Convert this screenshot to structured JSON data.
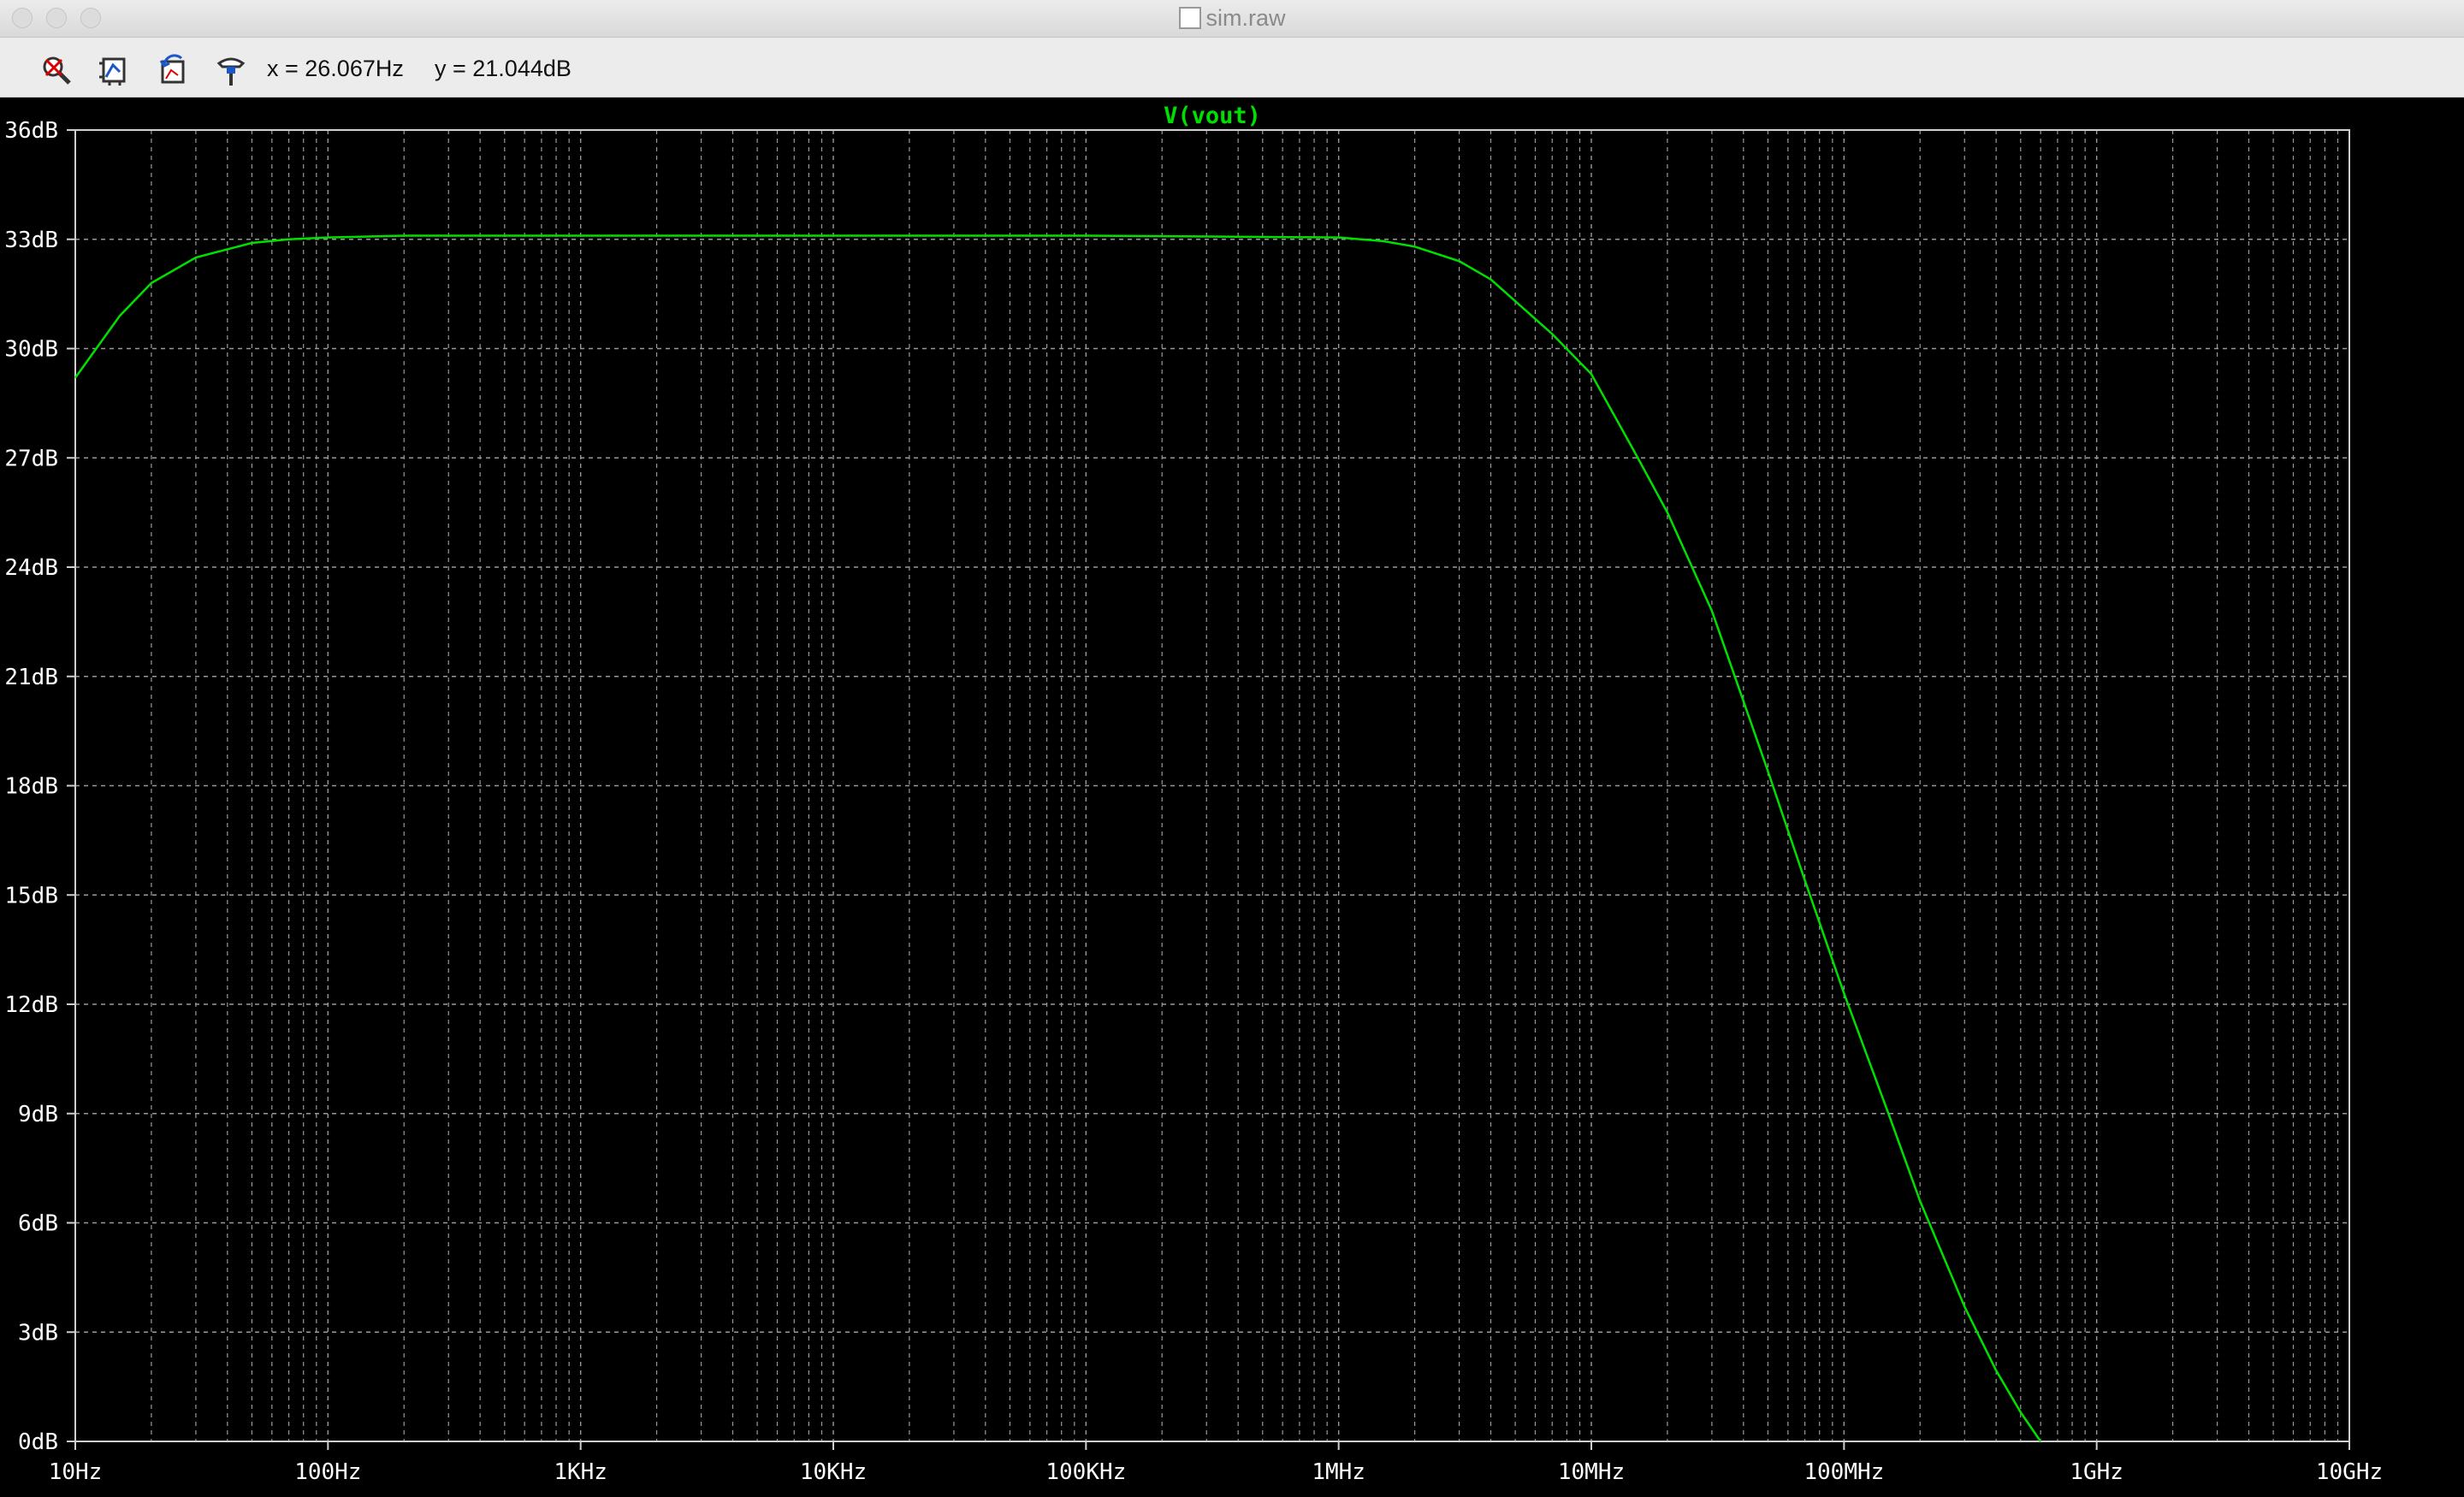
{
  "window": {
    "title": "sim.raw"
  },
  "toolbar": {
    "tools": [
      {
        "name": "zoom-cancel-icon"
      },
      {
        "name": "autorange-icon"
      },
      {
        "name": "undo-zoom-icon"
      },
      {
        "name": "probe-icon"
      }
    ],
    "cursor_x": "x = 26.067Hz",
    "cursor_y": "y = 21.044dB"
  },
  "colors": {
    "background": "#000000",
    "trace": "#00e000",
    "grid": "#9a9a9a",
    "axis_text": "#ffffff",
    "title_text": "#00e000"
  },
  "chart_data": {
    "type": "line",
    "title": "V(vout)",
    "xscale": "log",
    "xlim": [
      10,
      10000000000
    ],
    "ylim": [
      0,
      36
    ],
    "grid": true,
    "x_ticks": [
      {
        "value": 10,
        "label": "10Hz"
      },
      {
        "value": 100,
        "label": "100Hz"
      },
      {
        "value": 1000,
        "label": "1KHz"
      },
      {
        "value": 10000,
        "label": "10KHz"
      },
      {
        "value": 100000,
        "label": "100KHz"
      },
      {
        "value": 1000000,
        "label": "1MHz"
      },
      {
        "value": 10000000,
        "label": "10MHz"
      },
      {
        "value": 100000000,
        "label": "100MHz"
      },
      {
        "value": 1000000000,
        "label": "1GHz"
      },
      {
        "value": 10000000000,
        "label": "10GHz"
      }
    ],
    "y_ticks": [
      {
        "value": 0,
        "label": "0dB"
      },
      {
        "value": 3,
        "label": "3dB"
      },
      {
        "value": 6,
        "label": "6dB"
      },
      {
        "value": 9,
        "label": "9dB"
      },
      {
        "value": 12,
        "label": "12dB"
      },
      {
        "value": 15,
        "label": "15dB"
      },
      {
        "value": 18,
        "label": "18dB"
      },
      {
        "value": 21,
        "label": "21dB"
      },
      {
        "value": 24,
        "label": "24dB"
      },
      {
        "value": 27,
        "label": "27dB"
      },
      {
        "value": 30,
        "label": "30dB"
      },
      {
        "value": 33,
        "label": "33dB"
      },
      {
        "value": 36,
        "label": "36dB"
      }
    ],
    "series": [
      {
        "name": "V(vout)",
        "x": [
          10,
          15,
          20,
          30,
          50,
          70,
          100,
          200,
          1000,
          10000,
          100000,
          1000000,
          1500000,
          2000000,
          3000000,
          4000000,
          5000000,
          7000000,
          10000000,
          15000000,
          20000000,
          30000000,
          50000000,
          70000000,
          100000000,
          150000000,
          200000000,
          300000000,
          400000000,
          500000000,
          600000000
        ],
        "y": [
          29.2,
          30.9,
          31.8,
          32.5,
          32.9,
          33.0,
          33.05,
          33.1,
          33.1,
          33.1,
          33.1,
          33.05,
          32.95,
          32.8,
          32.4,
          31.9,
          31.3,
          30.4,
          29.3,
          27.1,
          25.5,
          22.8,
          18.4,
          15.4,
          12.3,
          9.0,
          6.6,
          3.7,
          1.95,
          0.8,
          0.0
        ]
      }
    ]
  }
}
